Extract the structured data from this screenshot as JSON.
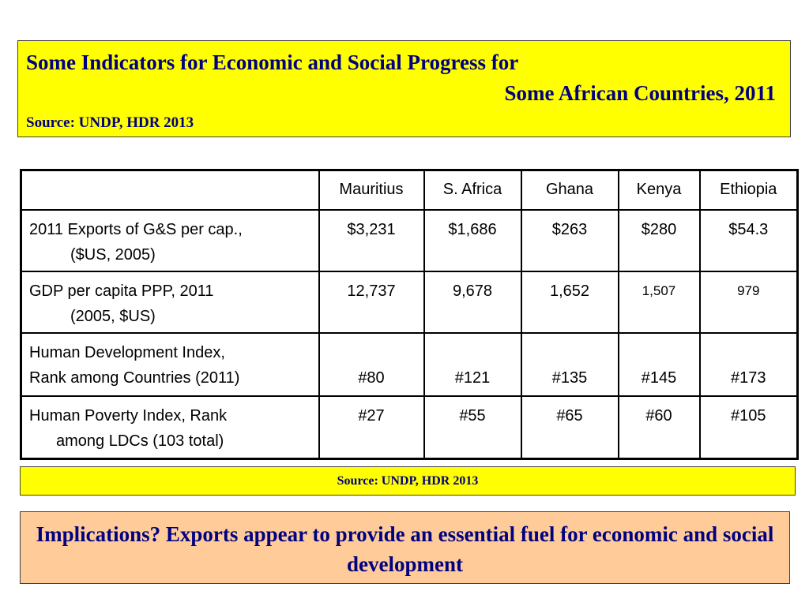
{
  "header": {
    "title_line1": "Some Indicators for Economic and Social Progress for",
    "title_line2": "Some African Countries, 2011",
    "source": "Source: UNDP, HDR 2013"
  },
  "table": {
    "columns": [
      "",
      "Mauritius",
      "S. Africa",
      "Ghana",
      "Kenya",
      "Ethiopia"
    ],
    "rows": [
      {
        "label1": "2011 Exports of G&S per cap.,",
        "label2": "($US, 2005)",
        "values": [
          "$3,231",
          "$1,686",
          "$263",
          "$280",
          "$54.3"
        ]
      },
      {
        "label1": "GDP per capita PPP, 2011",
        "label2": "(2005, $US)",
        "values": [
          "12,737",
          "9,678",
          "1,652",
          "1,507",
          "979"
        ]
      },
      {
        "label1": "Human Development Index,",
        "label2": "Rank among Countries (2011)",
        "values": [
          "#80",
          "#121",
          "#135",
          "#145",
          "#173"
        ]
      },
      {
        "label1": "Human Poverty Index, Rank",
        "label2": "among LDCs (103 total)",
        "values": [
          "#27",
          "#55",
          "#65",
          "#60",
          "#105"
        ]
      }
    ]
  },
  "footer_source": "Source: UNDP, HDR 2013",
  "implications": "Implications? Exports appear to provide an essential fuel for economic and social development",
  "colors": {
    "highlight": "#ffff00",
    "implications_bg": "#ffcc99",
    "title_text": "#000080"
  }
}
